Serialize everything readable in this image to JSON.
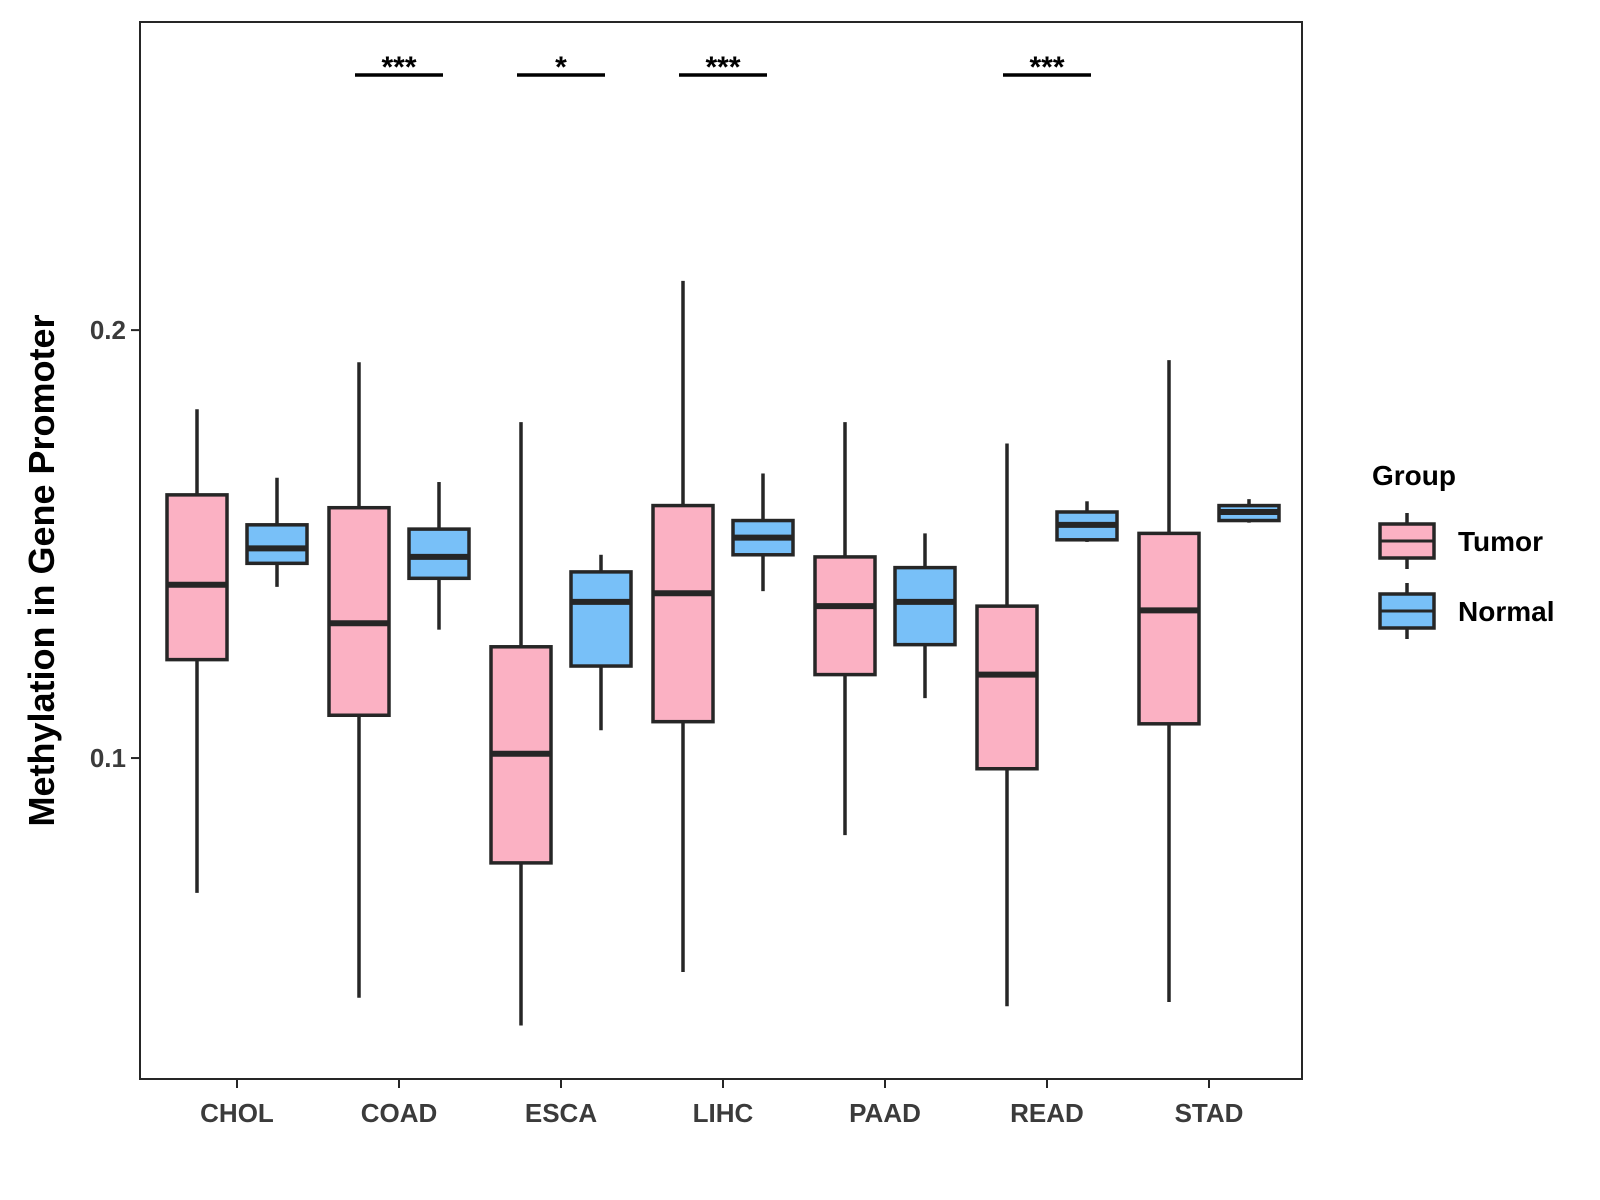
{
  "chart_data": {
    "type": "boxplot",
    "title": "",
    "xlabel": "",
    "ylabel": "Methylation in Gene Promoter",
    "ylim": [
      0.025,
      0.272
    ],
    "yticks": [
      0.1,
      0.2
    ],
    "ytick_labels": [
      "0.1",
      "0.2"
    ],
    "categories": [
      "CHOL",
      "COAD",
      "ESCA",
      "LIHC",
      "PAAD",
      "READ",
      "STAD"
    ],
    "legend": {
      "title": "Group",
      "position": "right",
      "entries": [
        "Tumor",
        "Normal"
      ]
    },
    "colors": {
      "Tumor": "#fbb1c3",
      "Normal": "#78c0f8",
      "outline": "#262626",
      "frame": "#262626"
    },
    "series": [
      {
        "name": "Tumor",
        "boxes": [
          {
            "category": "CHOL",
            "min": 0.0685,
            "q1": 0.123,
            "median": 0.1405,
            "q3": 0.1615,
            "max": 0.1815
          },
          {
            "category": "COAD",
            "min": 0.044,
            "q1": 0.11,
            "median": 0.1315,
            "q3": 0.1585,
            "max": 0.1925
          },
          {
            "category": "ESCA",
            "min": 0.0375,
            "q1": 0.0755,
            "median": 0.101,
            "q3": 0.126,
            "max": 0.1785
          },
          {
            "category": "LIHC",
            "min": 0.05,
            "q1": 0.1085,
            "median": 0.1385,
            "q3": 0.159,
            "max": 0.2115
          },
          {
            "category": "PAAD",
            "min": 0.082,
            "q1": 0.1195,
            "median": 0.1355,
            "q3": 0.147,
            "max": 0.1785
          },
          {
            "category": "READ",
            "min": 0.042,
            "q1": 0.0975,
            "median": 0.1195,
            "q3": 0.1355,
            "max": 0.1735
          },
          {
            "category": "STAD",
            "min": 0.043,
            "q1": 0.108,
            "median": 0.1345,
            "q3": 0.1525,
            "max": 0.193
          }
        ]
      },
      {
        "name": "Normal",
        "boxes": [
          {
            "category": "CHOL",
            "min": 0.14,
            "q1": 0.1455,
            "median": 0.149,
            "q3": 0.1545,
            "max": 0.1655
          },
          {
            "category": "COAD",
            "min": 0.13,
            "q1": 0.142,
            "median": 0.147,
            "q3": 0.1535,
            "max": 0.1645
          },
          {
            "category": "ESCA",
            "min": 0.1065,
            "q1": 0.1215,
            "median": 0.1365,
            "q3": 0.1435,
            "max": 0.1475
          },
          {
            "category": "LIHC",
            "min": 0.139,
            "q1": 0.1475,
            "median": 0.1515,
            "q3": 0.1555,
            "max": 0.1665
          },
          {
            "category": "PAAD",
            "min": 0.114,
            "q1": 0.1265,
            "median": 0.1365,
            "q3": 0.1445,
            "max": 0.1525
          },
          {
            "category": "READ",
            "min": 0.1505,
            "q1": 0.151,
            "median": 0.1545,
            "q3": 0.1575,
            "max": 0.16
          },
          {
            "category": "STAD",
            "min": 0.155,
            "q1": 0.1555,
            "median": 0.1575,
            "q3": 0.159,
            "max": 0.1605
          }
        ]
      }
    ],
    "annotations": [
      {
        "category": "COAD",
        "label": "***"
      },
      {
        "category": "ESCA",
        "label": "*"
      },
      {
        "category": "LIHC",
        "label": "***"
      },
      {
        "category": "READ",
        "label": "***"
      }
    ]
  }
}
